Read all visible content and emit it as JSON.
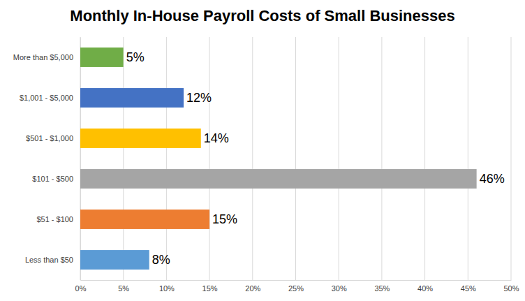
{
  "chart_data": {
    "type": "bar",
    "orientation": "horizontal",
    "title": "Monthly In-House Payroll Costs of Small Businesses",
    "categories": [
      "Less than $50",
      "$51 - $100",
      "$101 - $500",
      "$501 - $1,000",
      "$1,001 - $5,000",
      "More than $5,000"
    ],
    "values": [
      8,
      15,
      46,
      14,
      12,
      5
    ],
    "value_labels": [
      "8%",
      "15%",
      "46%",
      "14%",
      "12%",
      "5%"
    ],
    "colors": [
      "#5b9bd5",
      "#ed7d31",
      "#a5a5a5",
      "#ffc000",
      "#4472c4",
      "#70ad47"
    ],
    "xlim": [
      0,
      50
    ],
    "xticks": [
      {
        "value": 0,
        "label": "0%"
      },
      {
        "value": 5,
        "label": "5%"
      },
      {
        "value": 10,
        "label": "10%"
      },
      {
        "value": 15,
        "label": "15%"
      },
      {
        "value": 20,
        "label": "20%"
      },
      {
        "value": 25,
        "label": "25%"
      },
      {
        "value": 30,
        "label": "30%"
      },
      {
        "value": 35,
        "label": "35%"
      },
      {
        "value": 40,
        "label": "40%"
      },
      {
        "value": 45,
        "label": "45%"
      },
      {
        "value": 50,
        "label": "50%"
      }
    ],
    "grid": true,
    "data_labels": true
  }
}
